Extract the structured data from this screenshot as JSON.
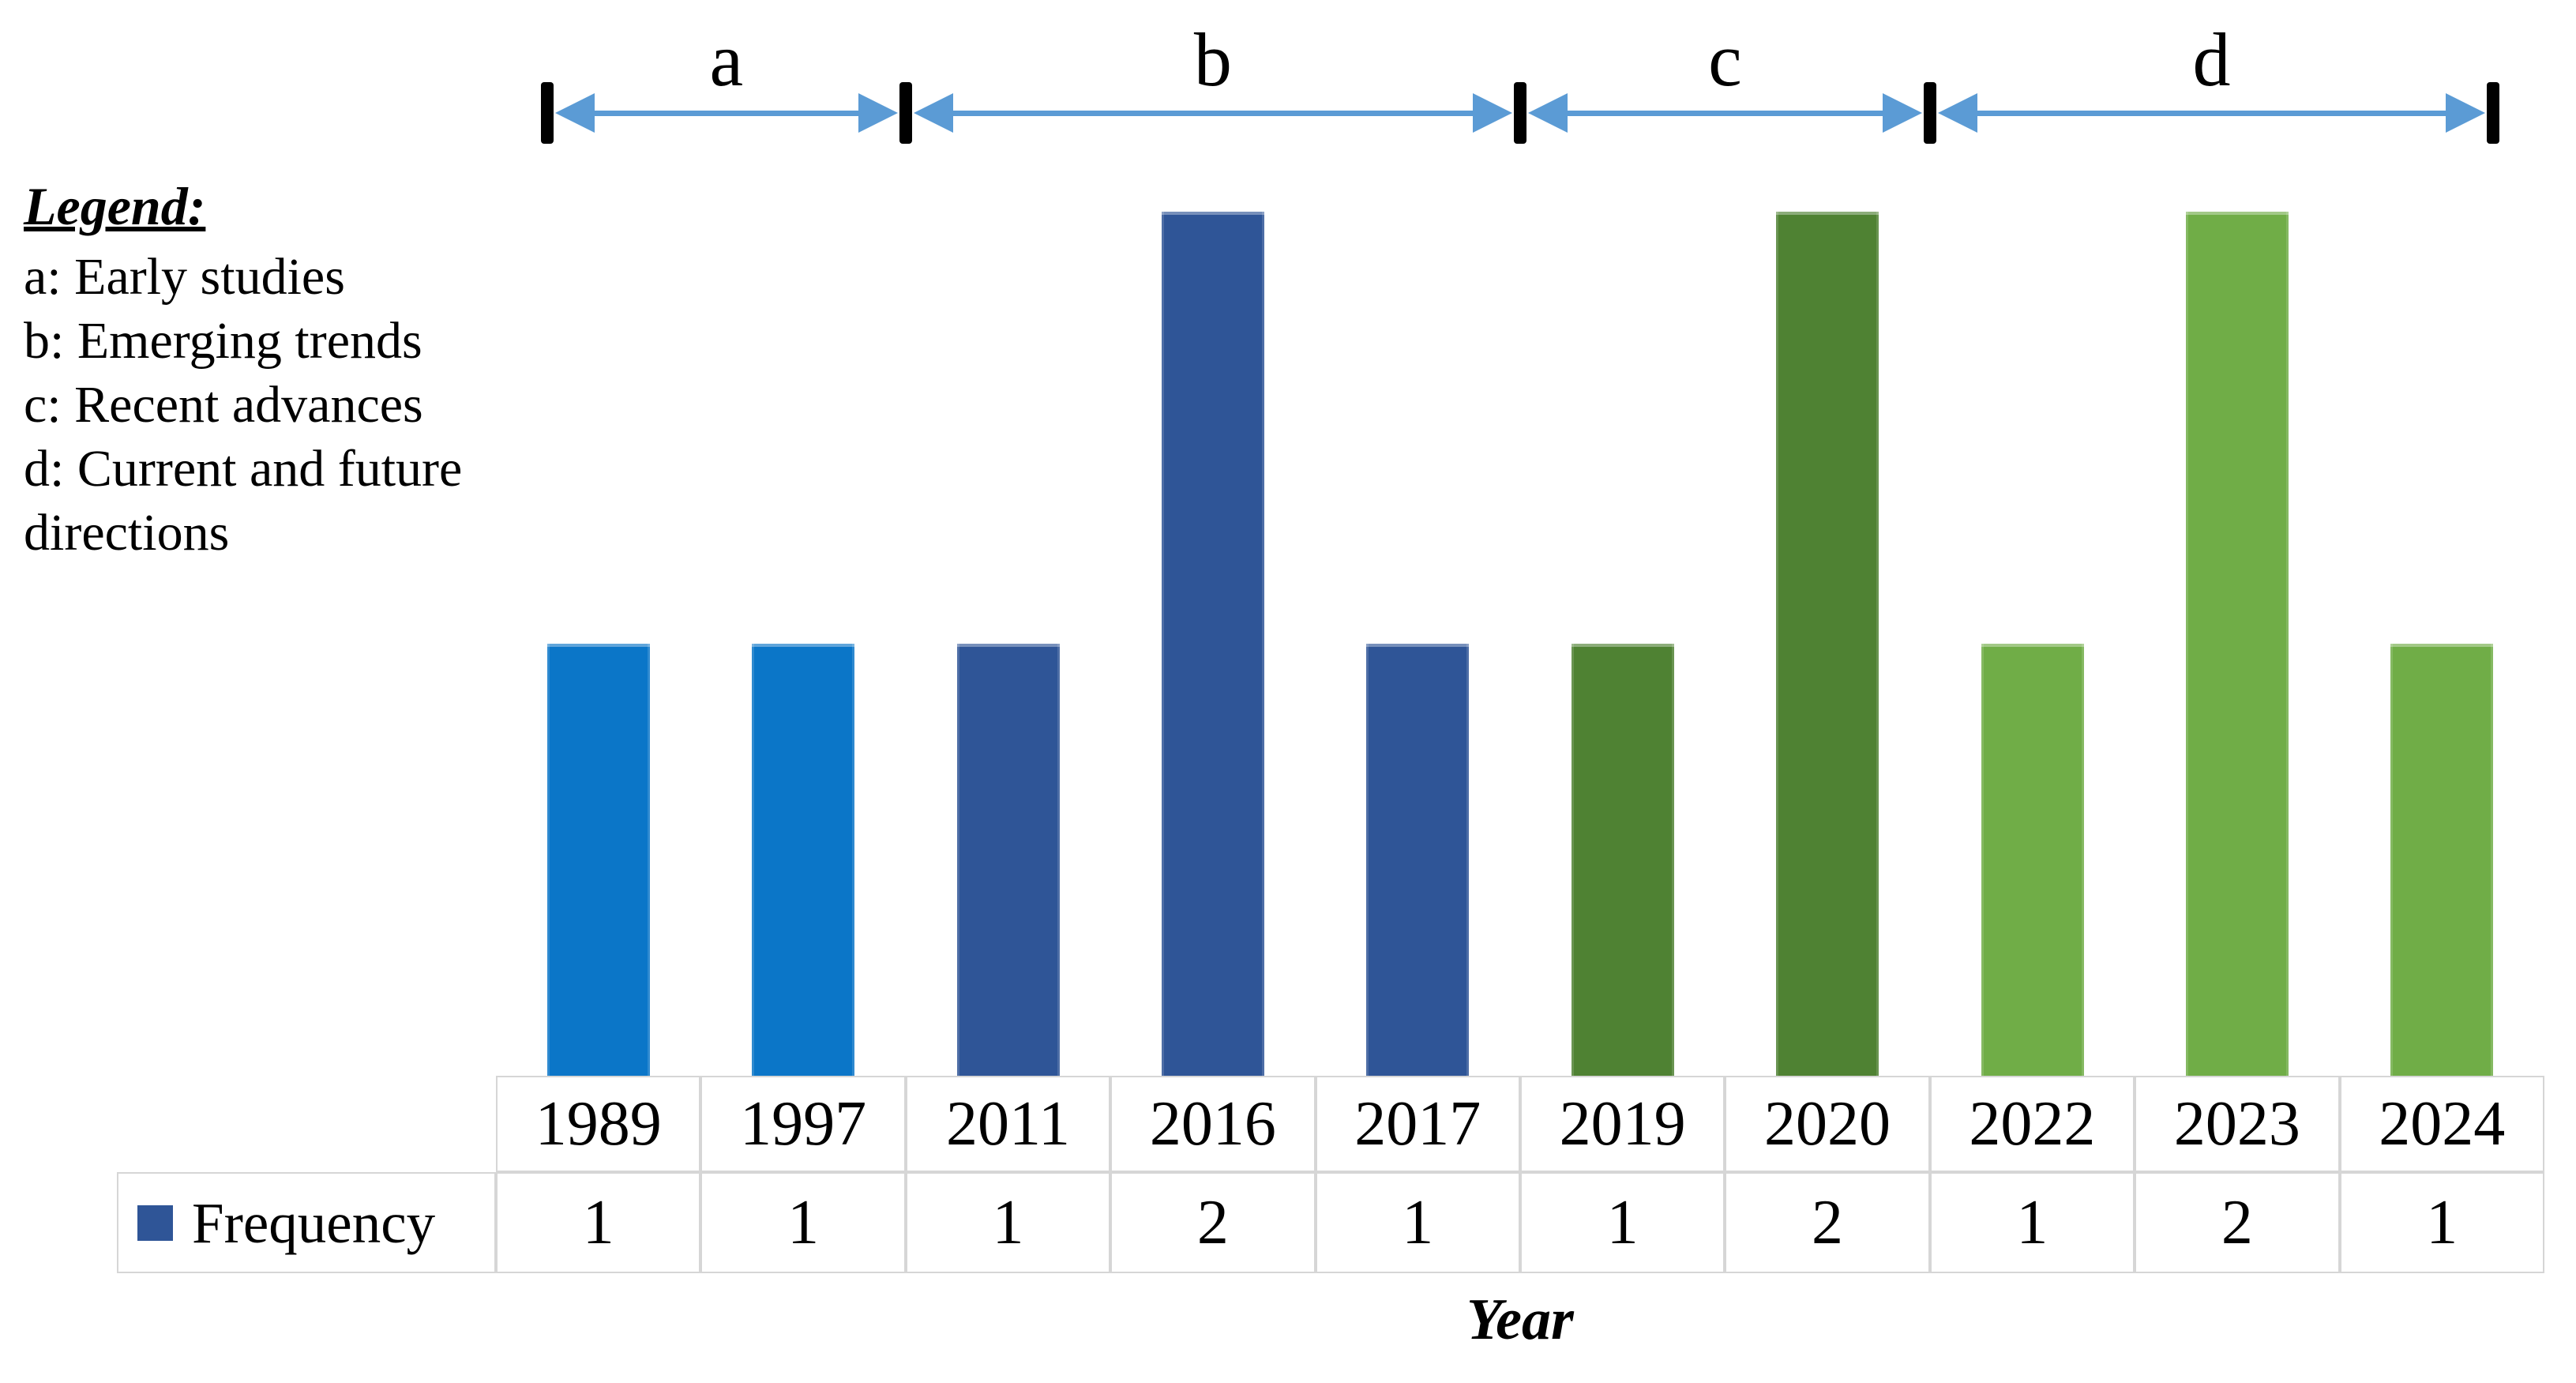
{
  "legend_block": {
    "title": "Legend:",
    "lines": [
      "a: Early studies",
      "b: Emerging trends",
      "c: Recent advances",
      "d: Current and future",
      "directions"
    ]
  },
  "top_axis": {
    "arrow_color": "#5B9BD5",
    "tick_color": "#000000",
    "segments": [
      {
        "label": "a"
      },
      {
        "label": "b"
      },
      {
        "label": "c"
      },
      {
        "label": "d"
      }
    ]
  },
  "chart_data": {
    "type": "bar",
    "title": "",
    "xlabel": "Year",
    "ylabel": "",
    "ylim": [
      0,
      2.15
    ],
    "grid": false,
    "legend_position": "bottom-table",
    "categories": [
      "1989",
      "1997",
      "2011",
      "2016",
      "2017",
      "2019",
      "2020",
      "2022",
      "2023",
      "2024"
    ],
    "series": [
      {
        "name": "Frequency",
        "values": [
          1,
          1,
          1,
          2,
          1,
          1,
          2,
          1,
          2,
          1
        ]
      }
    ],
    "bar_colors": [
      "#0B76C8",
      "#0B76C8",
      "#2F5597",
      "#2F5597",
      "#2F5597",
      "#4F8233",
      "#4F8233",
      "#70AD47",
      "#70AD47",
      "#70AD47"
    ],
    "groups": [
      {
        "label": "a",
        "name": "Early studies",
        "years": [
          "1989",
          "1997"
        ],
        "color": "#0B76C8"
      },
      {
        "label": "b",
        "name": "Emerging trends",
        "years": [
          "2011",
          "2016",
          "2017"
        ],
        "color": "#2F5597"
      },
      {
        "label": "c",
        "name": "Recent advances",
        "years": [
          "2019",
          "2020"
        ],
        "color": "#4F8233"
      },
      {
        "label": "d",
        "name": "Current and future directions",
        "years": [
          "2022",
          "2023",
          "2024"
        ],
        "color": "#70AD47"
      }
    ]
  },
  "data_table": {
    "row_label": "Frequency",
    "swatch_color": "#2F5597",
    "border_color": "#D6D6D6",
    "columns": [
      "1989",
      "1997",
      "2011",
      "2016",
      "2017",
      "2019",
      "2020",
      "2022",
      "2023",
      "2024"
    ],
    "values": [
      "1",
      "1",
      "1",
      "2",
      "1",
      "1",
      "2",
      "1",
      "2",
      "1"
    ]
  },
  "x_axis": {
    "label": "Year"
  }
}
